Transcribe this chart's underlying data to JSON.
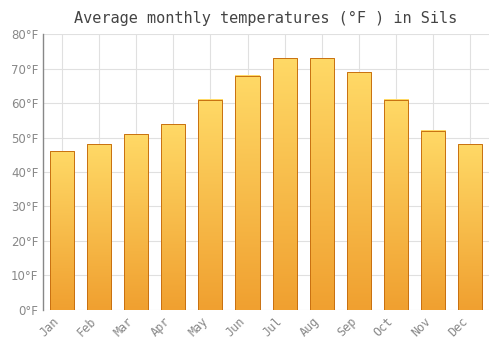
{
  "title": "Average monthly temperatures (°F ) in Sils",
  "months": [
    "Jan",
    "Feb",
    "Mar",
    "Apr",
    "May",
    "Jun",
    "Jul",
    "Aug",
    "Sep",
    "Oct",
    "Nov",
    "Dec"
  ],
  "values": [
    46,
    48,
    51,
    54,
    61,
    68,
    73,
    73,
    69,
    61,
    52,
    48
  ],
  "bar_color_top": "#FFD966",
  "bar_color_bottom": "#F0A030",
  "bar_edge_color": "#C87010",
  "ylim": [
    0,
    80
  ],
  "yticks": [
    0,
    10,
    20,
    30,
    40,
    50,
    60,
    70,
    80
  ],
  "background_color": "#ffffff",
  "grid_color": "#e0e0e0",
  "title_fontsize": 11,
  "tick_fontsize": 8.5,
  "tick_label_color": "#888888",
  "title_color": "#444444"
}
